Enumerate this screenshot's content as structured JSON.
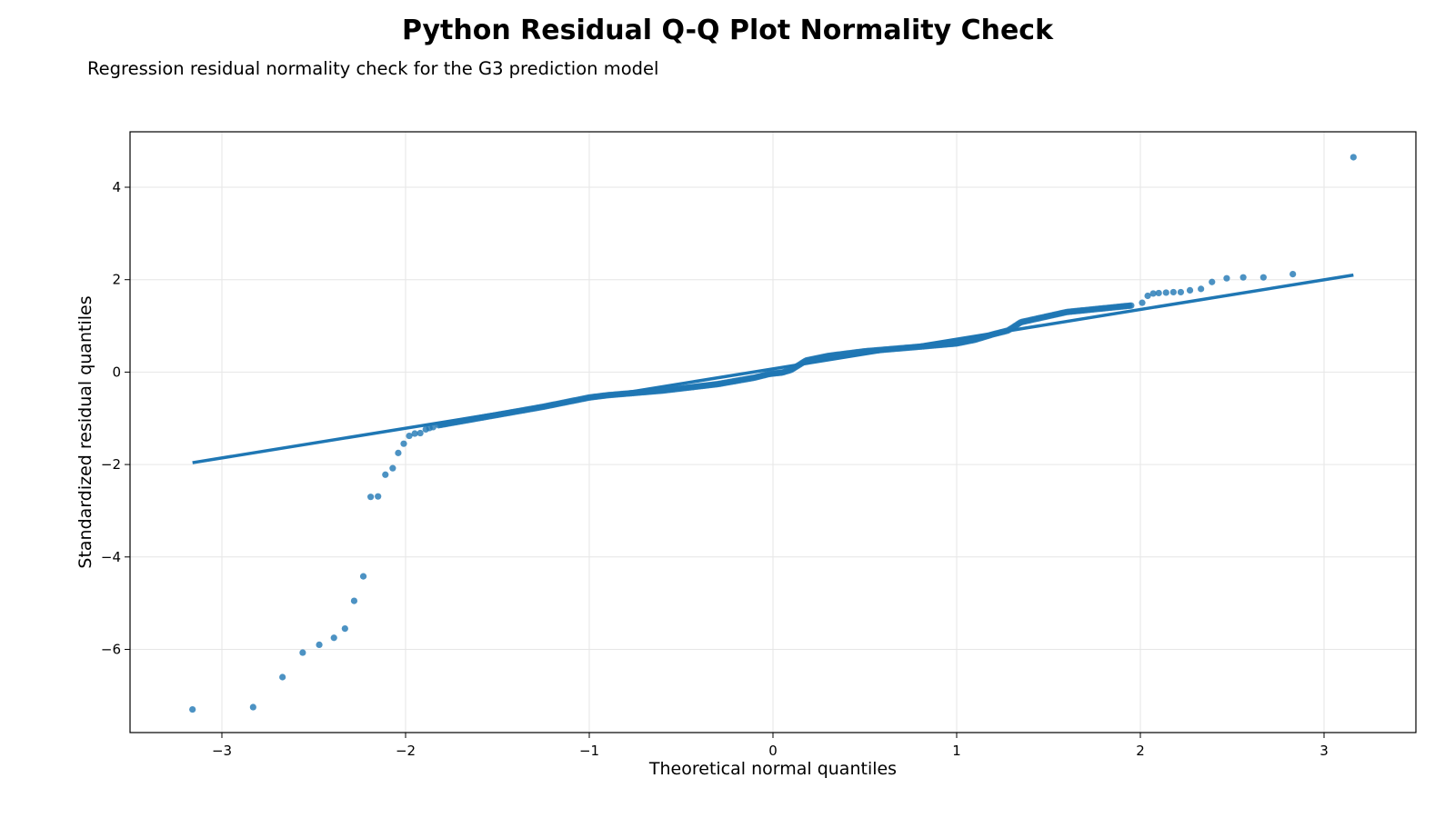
{
  "chart_data": {
    "type": "scatter",
    "title": "Python Residual Q-Q Plot Normality Check",
    "subtitle": "Regression residual normality check for the G3 prediction model",
    "xlabel": "Theoretical normal quantiles",
    "ylabel": "Standardized residual quantiles",
    "xlim": [
      -3.5,
      3.5
    ],
    "ylim": [
      -7.8,
      5.2
    ],
    "xticks": [
      -3,
      -2,
      -1,
      0,
      1,
      2,
      3
    ],
    "xtick_labels": [
      "−3",
      "−2",
      "−1",
      "0",
      "1",
      "2",
      "3"
    ],
    "yticks": [
      -6,
      -4,
      -2,
      0,
      2,
      4
    ],
    "ytick_labels": [
      "−6",
      "−4",
      "−2",
      "0",
      "2",
      "4"
    ],
    "grid": true,
    "legend": "none",
    "point_color": "#1f77b4",
    "line_color": "#1f77b4",
    "reference_line": {
      "x": [
        -3.16,
        3.16
      ],
      "y": [
        -1.96,
        2.1
      ]
    },
    "outlier_points": {
      "x": [
        -3.16,
        -2.83,
        -2.67,
        -2.56,
        -2.47,
        -2.39,
        -2.33,
        -2.28,
        -2.23,
        -2.19,
        -2.15,
        -2.11,
        -2.07,
        -2.04,
        -2.01,
        -1.98,
        -1.95,
        -1.92,
        -1.89,
        -1.87,
        -1.85,
        2.01,
        2.04,
        2.07,
        2.1,
        2.14,
        2.18,
        2.22,
        2.27,
        2.33,
        2.39,
        2.47,
        2.56,
        2.67,
        2.83,
        3.16
      ],
      "y": [
        -7.3,
        -7.25,
        -6.6,
        -6.07,
        -5.9,
        -5.75,
        -5.55,
        -4.95,
        -4.42,
        -2.7,
        -2.69,
        -2.22,
        -2.08,
        -1.75,
        -1.55,
        -1.38,
        -1.33,
        -1.32,
        -1.24,
        -1.21,
        -1.19,
        1.5,
        1.65,
        1.7,
        1.71,
        1.72,
        1.73,
        1.73,
        1.77,
        1.8,
        1.95,
        2.03,
        2.05,
        2.05,
        2.12,
        4.65
      ]
    },
    "bulk_points": {
      "x": [
        -1.82,
        -1.25,
        -1.0,
        -0.9,
        -0.6,
        -0.3,
        -0.1,
        -0.02,
        0.05,
        0.1,
        0.18,
        0.3,
        0.5,
        0.8,
        1.0,
        1.1,
        1.2,
        1.28,
        1.35,
        1.6,
        1.8,
        1.95
      ],
      "y": [
        -1.15,
        -0.75,
        -0.55,
        -0.5,
        -0.4,
        -0.26,
        -0.12,
        -0.04,
        -0.01,
        0.05,
        0.25,
        0.35,
        0.45,
        0.55,
        0.62,
        0.7,
        0.82,
        0.9,
        1.08,
        1.3,
        1.38,
        1.44
      ]
    }
  }
}
